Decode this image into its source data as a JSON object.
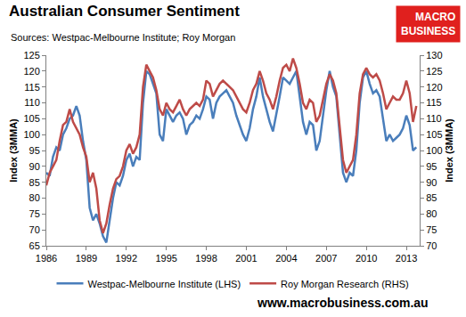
{
  "chart_data": {
    "type": "line",
    "title": "Australian Consumer Sentiment",
    "subtitle": "Sources: Westpac-Melbourne Institute; Roy Morgan",
    "y_label": "Index (3MMA)",
    "y2_label": "Index (3MMA)",
    "logo": [
      "MACRO",
      "BUSINESS"
    ],
    "footer": "www.macrobusiness.com.au",
    "x": [
      1986,
      1986.25,
      1986.5,
      1986.75,
      1987,
      1987.25,
      1987.5,
      1987.75,
      1988,
      1988.25,
      1988.5,
      1988.75,
      1989,
      1989.25,
      1989.5,
      1989.75,
      1990,
      1990.25,
      1990.5,
      1990.75,
      1991,
      1991.25,
      1991.5,
      1991.75,
      1992,
      1992.25,
      1992.5,
      1992.75,
      1993,
      1993.25,
      1993.5,
      1993.75,
      1994,
      1994.25,
      1994.5,
      1994.75,
      1995,
      1995.25,
      1995.5,
      1995.75,
      1996,
      1996.25,
      1996.5,
      1996.75,
      1997,
      1997.25,
      1997.5,
      1997.75,
      1998,
      1998.25,
      1998.5,
      1998.75,
      1999,
      1999.25,
      1999.5,
      1999.75,
      2000,
      2000.25,
      2000.5,
      2000.75,
      2001,
      2001.25,
      2001.5,
      2001.75,
      2002,
      2002.25,
      2002.5,
      2002.75,
      2003,
      2003.25,
      2003.5,
      2003.75,
      2004,
      2004.25,
      2004.5,
      2004.75,
      2005,
      2005.25,
      2005.5,
      2005.75,
      2006,
      2006.25,
      2006.5,
      2006.75,
      2007,
      2007.25,
      2007.5,
      2007.75,
      2008,
      2008.25,
      2008.5,
      2008.75,
      2009,
      2009.25,
      2009.5,
      2009.75,
      2010,
      2010.25,
      2010.5,
      2010.75,
      2011,
      2011.25,
      2011.5,
      2011.75,
      2012,
      2012.25,
      2012.5,
      2012.75,
      2013,
      2013.25,
      2013.5,
      2013.75
    ],
    "series": [
      {
        "name": "Westpac-Melbourne Institute (LHS)",
        "color": "#4a7ebb",
        "axis": "y",
        "values": [
          88,
          87,
          93,
          96,
          95,
          100,
          102,
          105,
          106,
          109,
          106,
          98,
          92,
          77,
          73,
          75,
          72,
          68,
          66,
          73,
          80,
          85,
          84,
          87,
          92,
          94,
          90,
          93,
          92,
          110,
          120,
          119,
          116,
          113,
          100,
          98,
          108,
          106,
          104,
          106,
          107,
          105,
          100,
          103,
          104,
          106,
          105,
          108,
          112,
          111,
          105,
          110,
          112,
          113,
          114,
          112,
          110,
          106,
          103,
          100,
          98,
          102,
          108,
          112,
          118,
          112,
          108,
          104,
          101,
          106,
          112,
          118,
          117,
          116,
          118,
          120,
          112,
          104,
          100,
          104,
          103,
          95,
          98,
          106,
          114,
          120,
          115,
          112,
          100,
          88,
          85,
          88,
          87,
          95,
          110,
          118,
          120,
          116,
          113,
          114,
          112,
          105,
          98,
          100,
          98,
          99,
          100,
          102,
          106,
          103,
          95,
          96
        ]
      },
      {
        "name": "Roy Morgan Research (RHS)",
        "color": "#be4b48",
        "axis": "y2",
        "values": [
          89,
          93,
          95,
          97,
          103,
          108,
          109,
          113,
          109,
          107,
          105,
          101,
          98,
          90,
          93,
          88,
          78,
          74,
          77,
          83,
          88,
          91,
          92,
          95,
          100,
          102,
          99,
          101,
          105,
          120,
          127,
          125,
          123,
          119,
          113,
          111,
          115,
          113,
          112,
          114,
          116,
          113,
          111,
          113,
          114,
          115,
          114,
          116,
          122,
          121,
          117,
          119,
          121,
          122,
          121,
          120,
          119,
          117,
          115,
          113,
          112,
          115,
          119,
          121,
          125,
          122,
          118,
          116,
          113,
          117,
          122,
          126,
          127,
          125,
          129,
          126,
          121,
          115,
          113,
          116,
          115,
          109,
          111,
          116,
          121,
          124,
          122,
          118,
          108,
          97,
          93,
          95,
          97,
          105,
          118,
          124,
          126,
          124,
          123,
          124,
          122,
          118,
          113,
          115,
          117,
          116,
          116,
          118,
          122,
          118,
          109,
          114
        ]
      }
    ],
    "xlim": [
      1986,
      2014
    ],
    "xticks": [
      1986,
      1989,
      1992,
      1995,
      1998,
      2001,
      2004,
      2007,
      2010,
      2013
    ],
    "ylim": [
      65,
      125
    ],
    "yticks": [
      65,
      70,
      75,
      80,
      85,
      90,
      95,
      100,
      105,
      110,
      115,
      120,
      125
    ],
    "y2lim": [
      70,
      130
    ],
    "y2ticks": [
      70,
      75,
      80,
      85,
      90,
      95,
      100,
      105,
      110,
      115,
      120,
      125,
      130
    ],
    "grid": false,
    "legend": "bottom"
  }
}
